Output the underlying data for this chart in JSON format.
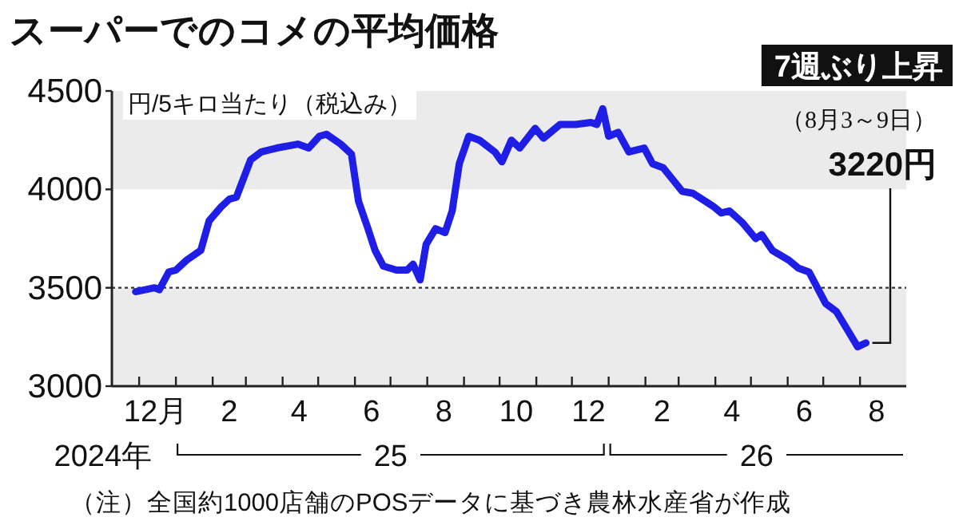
{
  "chart_data": {
    "type": "line",
    "title": "スーパーでのコメの平均価格",
    "ylabel": "円/5キロ当たり（税込み）",
    "color": "#1e1ee6",
    "x": [
      "2024-11-28",
      "2024-12-14",
      "2024-12-18",
      "2024-12-26",
      "2025-01-01",
      "2025-01-10",
      "2025-01-22",
      "2025-01-29",
      "2025-02-08",
      "2025-02-15",
      "2025-02-21",
      "2025-03-05",
      "2025-03-14",
      "2025-03-27",
      "2025-04-14",
      "2025-04-23",
      "2025-05-02",
      "2025-05-08",
      "2025-05-20",
      "2025-05-29",
      "2025-06-04",
      "2025-06-12",
      "2025-06-18",
      "2025-06-25",
      "2025-07-06",
      "2025-07-15",
      "2025-07-20",
      "2025-07-26",
      "2025-07-31",
      "2025-08-08",
      "2025-08-16",
      "2025-08-22",
      "2025-08-28",
      "2025-09-05",
      "2025-09-14",
      "2025-09-27",
      "2025-10-03",
      "2025-10-11",
      "2025-10-18",
      "2025-10-31",
      "2025-11-07",
      "2025-11-21",
      "2025-12-04",
      "2025-12-17",
      "2025-12-22",
      "2025-12-27",
      "2026-01-01",
      "2026-01-09",
      "2026-01-18",
      "2026-01-31",
      "2026-02-07",
      "2026-02-16",
      "2026-03-04",
      "2026-03-13",
      "2026-03-26",
      "2026-03-31",
      "2026-04-06",
      "2026-04-13",
      "2026-04-24",
      "2026-05-05",
      "2026-05-10",
      "2026-05-19",
      "2026-06-02",
      "2026-06-10",
      "2026-06-19",
      "2026-06-26",
      "2026-07-03",
      "2026-07-12",
      "2026-07-19",
      "2026-07-30",
      "2026-08-06"
    ],
    "values": [
      3480,
      3500,
      3490,
      3580,
      3590,
      3640,
      3690,
      3840,
      3910,
      3950,
      3960,
      4150,
      4190,
      4210,
      4230,
      4210,
      4270,
      4280,
      4230,
      4180,
      3940,
      3800,
      3690,
      3610,
      3590,
      3590,
      3620,
      3540,
      3720,
      3800,
      3780,
      3890,
      4130,
      4270,
      4250,
      4190,
      4140,
      4250,
      4210,
      4310,
      4260,
      4330,
      4330,
      4340,
      4330,
      4410,
      4270,
      4290,
      4190,
      4210,
      4130,
      4110,
      3990,
      3980,
      3930,
      3910,
      3880,
      3890,
      3830,
      3750,
      3770,
      3690,
      3640,
      3600,
      3580,
      3500,
      3420,
      3380,
      3310,
      3200,
      3220
    ],
    "xlim": [
      "2024-11-08",
      "2026-09-09"
    ],
    "xticks": [
      {
        "value": "2024-12-01",
        "label": null
      },
      {
        "value": "2025-01-01",
        "label": null
      },
      {
        "value": "2025-02-01",
        "label": null
      },
      {
        "value": "2025-03-01",
        "label": null
      },
      {
        "value": "2025-04-01",
        "label": null
      },
      {
        "value": "2025-05-01",
        "label": null
      },
      {
        "value": "2025-06-01",
        "label": null
      },
      {
        "value": "2025-07-01",
        "label": null
      },
      {
        "value": "2025-08-01",
        "label": null
      },
      {
        "value": "2025-09-01",
        "label": null
      },
      {
        "value": "2025-10-01",
        "label": null
      },
      {
        "value": "2025-11-01",
        "label": null
      },
      {
        "value": "2025-12-01",
        "label": null
      },
      {
        "value": "2026-01-01",
        "label": null
      },
      {
        "value": "2026-02-01",
        "label": null
      },
      {
        "value": "2026-03-01",
        "label": null
      },
      {
        "value": "2026-04-01",
        "label": null
      },
      {
        "value": "2026-05-01",
        "label": null
      },
      {
        "value": "2026-06-01",
        "label": null
      },
      {
        "value": "2026-07-01",
        "label": null
      },
      {
        "value": "2026-08-01",
        "label": null
      },
      {
        "value": "2024-12-15",
        "label": "12月"
      },
      {
        "value": "2025-02-15",
        "label": "2"
      },
      {
        "value": "2025-04-15",
        "label": "4"
      },
      {
        "value": "2025-06-15",
        "label": "6"
      },
      {
        "value": "2025-08-15",
        "label": "8"
      },
      {
        "value": "2025-10-15",
        "label": "10"
      },
      {
        "value": "2025-12-15",
        "label": "12"
      },
      {
        "value": "2026-02-15",
        "label": "2"
      },
      {
        "value": "2026-04-15",
        "label": "4"
      },
      {
        "value": "2026-06-15",
        "label": "6"
      },
      {
        "value": "2026-08-15",
        "label": "8"
      }
    ],
    "ylim": [
      3000,
      4500
    ],
    "yticks": [
      3000,
      3500,
      4000,
      4500
    ],
    "bands": [
      {
        "axis": "y",
        "from": 3000,
        "to": 3500,
        "color": "#ebebeb"
      },
      {
        "axis": "y",
        "from": 4000,
        "to": 4500,
        "color": "#ebebeb"
      }
    ],
    "ref_lines": [
      {
        "axis": "y",
        "value": 3500,
        "line_style": "dotted",
        "color": "#333333"
      }
    ],
    "annotations": [
      "7週ぶり上昇",
      "（8月3～9日）",
      {
        "text": "3220円",
        "x": "2026-08-06",
        "y": 3220
      },
      "2024年",
      "25",
      "26",
      "（注）全国約1000店舗のPOSデータに基づき農林水産省が作成"
    ]
  }
}
